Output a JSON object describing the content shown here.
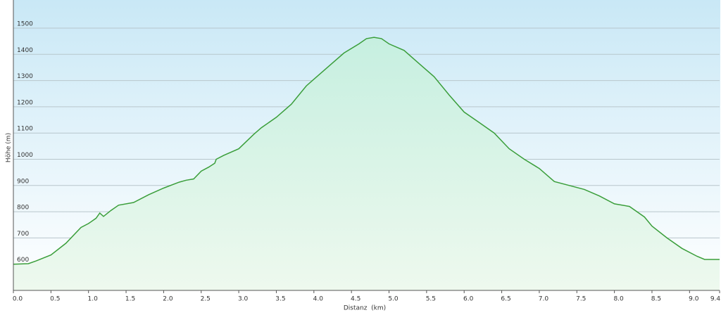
{
  "chart_data": {
    "type": "area",
    "y_label": "Höhe (m)",
    "x_label": "Distanz  (km)",
    "x": [
      0,
      0.2,
      0.3,
      0.5,
      0.7,
      0.9,
      1.0,
      1.1,
      1.15,
      1.2,
      1.3,
      1.4,
      1.6,
      1.8,
      2.0,
      2.2,
      2.3,
      2.4,
      2.5,
      2.6,
      2.68,
      2.7,
      2.8,
      3.0,
      3.2,
      3.3,
      3.5,
      3.7,
      3.9,
      4.0,
      4.2,
      4.4,
      4.6,
      4.7,
      4.8,
      4.9,
      5.0,
      5.2,
      5.4,
      5.6,
      5.8,
      6.0,
      6.2,
      6.4,
      6.6,
      6.8,
      7.0,
      7.2,
      7.4,
      7.6,
      7.8,
      8.0,
      8.2,
      8.4,
      8.5,
      8.7,
      8.9,
      9.1,
      9.2,
      9.4
    ],
    "values": [
      600,
      602,
      612,
      635,
      680,
      740,
      755,
      775,
      795,
      782,
      805,
      825,
      835,
      865,
      890,
      912,
      920,
      925,
      955,
      970,
      985,
      1000,
      1015,
      1040,
      1095,
      1120,
      1160,
      1210,
      1280,
      1305,
      1355,
      1405,
      1440,
      1460,
      1465,
      1460,
      1440,
      1415,
      1365,
      1315,
      1245,
      1180,
      1140,
      1100,
      1040,
      1000,
      965,
      915,
      900,
      885,
      860,
      830,
      820,
      780,
      745,
      700,
      660,
      630,
      618,
      618
    ],
    "color": "#3a9e3a",
    "xlim": [
      0,
      9.4
    ],
    "xticks": [
      {
        "value": 0,
        "label": "0.0"
      },
      0.5,
      {
        "value": 1,
        "label": "1.0"
      },
      1.5,
      {
        "value": 2,
        "label": "2.0"
      },
      2.5,
      {
        "value": 3,
        "label": "3.0"
      },
      3.5,
      {
        "value": 4,
        "label": "4.0"
      },
      4.5,
      {
        "value": 5,
        "label": "5.0"
      },
      5.5,
      {
        "value": 6,
        "label": "6.0"
      },
      6.5,
      {
        "value": 7,
        "label": "7.0"
      },
      7.5,
      {
        "value": 8,
        "label": "8.0"
      },
      8.5,
      {
        "value": 9,
        "label": "9.0"
      },
      9.4
    ],
    "ylim": [
      500,
      1600
    ],
    "yticks": [
      600,
      700,
      800,
      900,
      1000,
      1100,
      1200,
      1300,
      1400,
      1500
    ],
    "grid": true
  }
}
